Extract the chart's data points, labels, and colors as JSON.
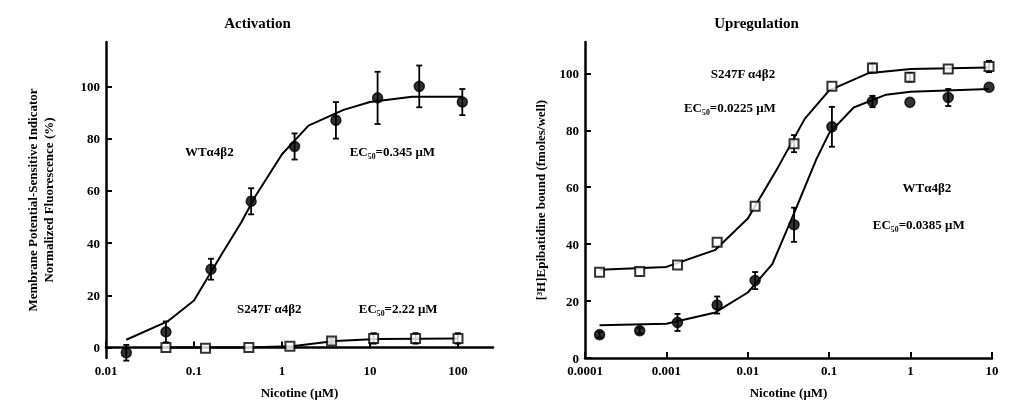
{
  "chart_data": [
    {
      "type": "scatter",
      "title": "Activation",
      "xlabel": "Nicotine (μM)",
      "ylabel": "Membrane Potential-Sensitive Indicator\nNormalized Fluorescence (%)",
      "log": "x",
      "xlim": [
        0.01,
        250
      ],
      "ylim": [
        -4,
        117
      ],
      "xticks": [
        0.01,
        0.1,
        1,
        10,
        100
      ],
      "yticks": [
        0,
        20,
        40,
        60,
        80,
        100
      ],
      "annotations": [
        "WTα4β2",
        "EC₅₀=0.345 μM",
        "S247F α4β2",
        "EC₅₀=2.22 μM"
      ],
      "series": [
        {
          "type": "line",
          "color": "#000000",
          "marker": "none",
          "x": [
            0.017,
            0.05,
            0.1,
            0.2,
            0.345,
            0.5,
            1,
            2,
            5,
            10,
            30,
            112
          ],
          "values": [
            3,
            10,
            18,
            35,
            48,
            58,
            74,
            85,
            91,
            94,
            96,
            96
          ]
        },
        {
          "type": "line",
          "color": "#000000",
          "marker": "none",
          "x": [
            0.048,
            0.4,
            1.3,
            4,
            12,
            100
          ],
          "values": [
            0,
            0,
            0.5,
            2.5,
            3.3,
            3.5
          ]
        },
        {
          "color": "#000000",
          "marker": "circle",
          "x": [
            0.017,
            0.048,
            0.156,
            0.446,
            1.39,
            4.1,
            12.2,
            36.3,
            112
          ],
          "values": [
            -2,
            6,
            30,
            56,
            77,
            87,
            95.6,
            100,
            94
          ],
          "errors": [
            3,
            4,
            4,
            5,
            5,
            7,
            10,
            8,
            5
          ]
        },
        {
          "color": "#000000",
          "marker": "square",
          "x": [
            0.048,
            0.135,
            0.42,
            1.23,
            3.66,
            11,
            33,
            100
          ],
          "values": [
            0,
            -0.3,
            0,
            0.5,
            2.5,
            3.5,
            3.5,
            3.5
          ],
          "errors": [
            null,
            null,
            null,
            null,
            1,
            2,
            2,
            2
          ]
        }
      ]
    },
    {
      "type": "scatter",
      "title": "Upregulation",
      "xlabel": "Nicotine (μM)",
      "ylabel": "[³H]Epibatidine bound (fmoles/well)",
      "log": "x",
      "xlim": [
        0.0001,
        10
      ],
      "ylim": [
        0,
        111
      ],
      "xticks": [
        0.0001,
        0.001,
        0.01,
        0.1,
        1,
        10
      ],
      "yticks": [
        0,
        20,
        40,
        60,
        80,
        100
      ],
      "annotations": [
        "S247F α4β2",
        "EC₅₀=0.0225 μM",
        "WTα4β2",
        "EC₅₀=0.0385 μM"
      ],
      "series": [
        {
          "type": "line",
          "color": "#000000",
          "marker": "none",
          "x": [
            0.000151,
            0.001,
            0.004,
            0.01,
            0.0225,
            0.05,
            0.1,
            0.3,
            1,
            9.2
          ],
          "values": [
            31,
            32,
            38,
            49,
            66,
            84,
            94,
            100,
            101.5,
            102
          ]
        },
        {
          "type": "line",
          "color": "#000000",
          "marker": "none",
          "x": [
            0.000151,
            0.001,
            0.004,
            0.01,
            0.02,
            0.0385,
            0.07,
            0.1,
            0.2,
            0.5,
            1,
            9.2
          ],
          "values": [
            11.5,
            12,
            16,
            23,
            33,
            52,
            70,
            79,
            88,
            92.5,
            93.5,
            94.5
          ]
        },
        {
          "color": "#000000",
          "marker": "square",
          "x": [
            0.000151,
            0.00047,
            0.00137,
            0.0042,
            0.0123,
            0.037,
            0.108,
            0.34,
            0.98,
            2.9,
            9.2
          ],
          "values": [
            30.1,
            30.4,
            32.7,
            40.7,
            53.3,
            75.3,
            95.5,
            101.9,
            98.6,
            101.5,
            102.4
          ],
          "errors": [
            null,
            null,
            null,
            null,
            null,
            3,
            null,
            1.5,
            1.5,
            null,
            2
          ]
        },
        {
          "color": "#000000",
          "marker": "circle",
          "x": [
            0.000151,
            0.00047,
            0.00137,
            0.0042,
            0.0123,
            0.037,
            0.108,
            0.34,
            0.98,
            2.9,
            9.2
          ],
          "values": [
            8.2,
            9.6,
            12.5,
            18.6,
            27.2,
            46.8,
            81.2,
            90.1,
            89.8,
            91.5,
            95.1
          ],
          "errors": [
            1,
            1,
            3,
            3,
            3,
            6,
            7,
            2,
            null,
            3,
            null
          ]
        }
      ]
    }
  ]
}
